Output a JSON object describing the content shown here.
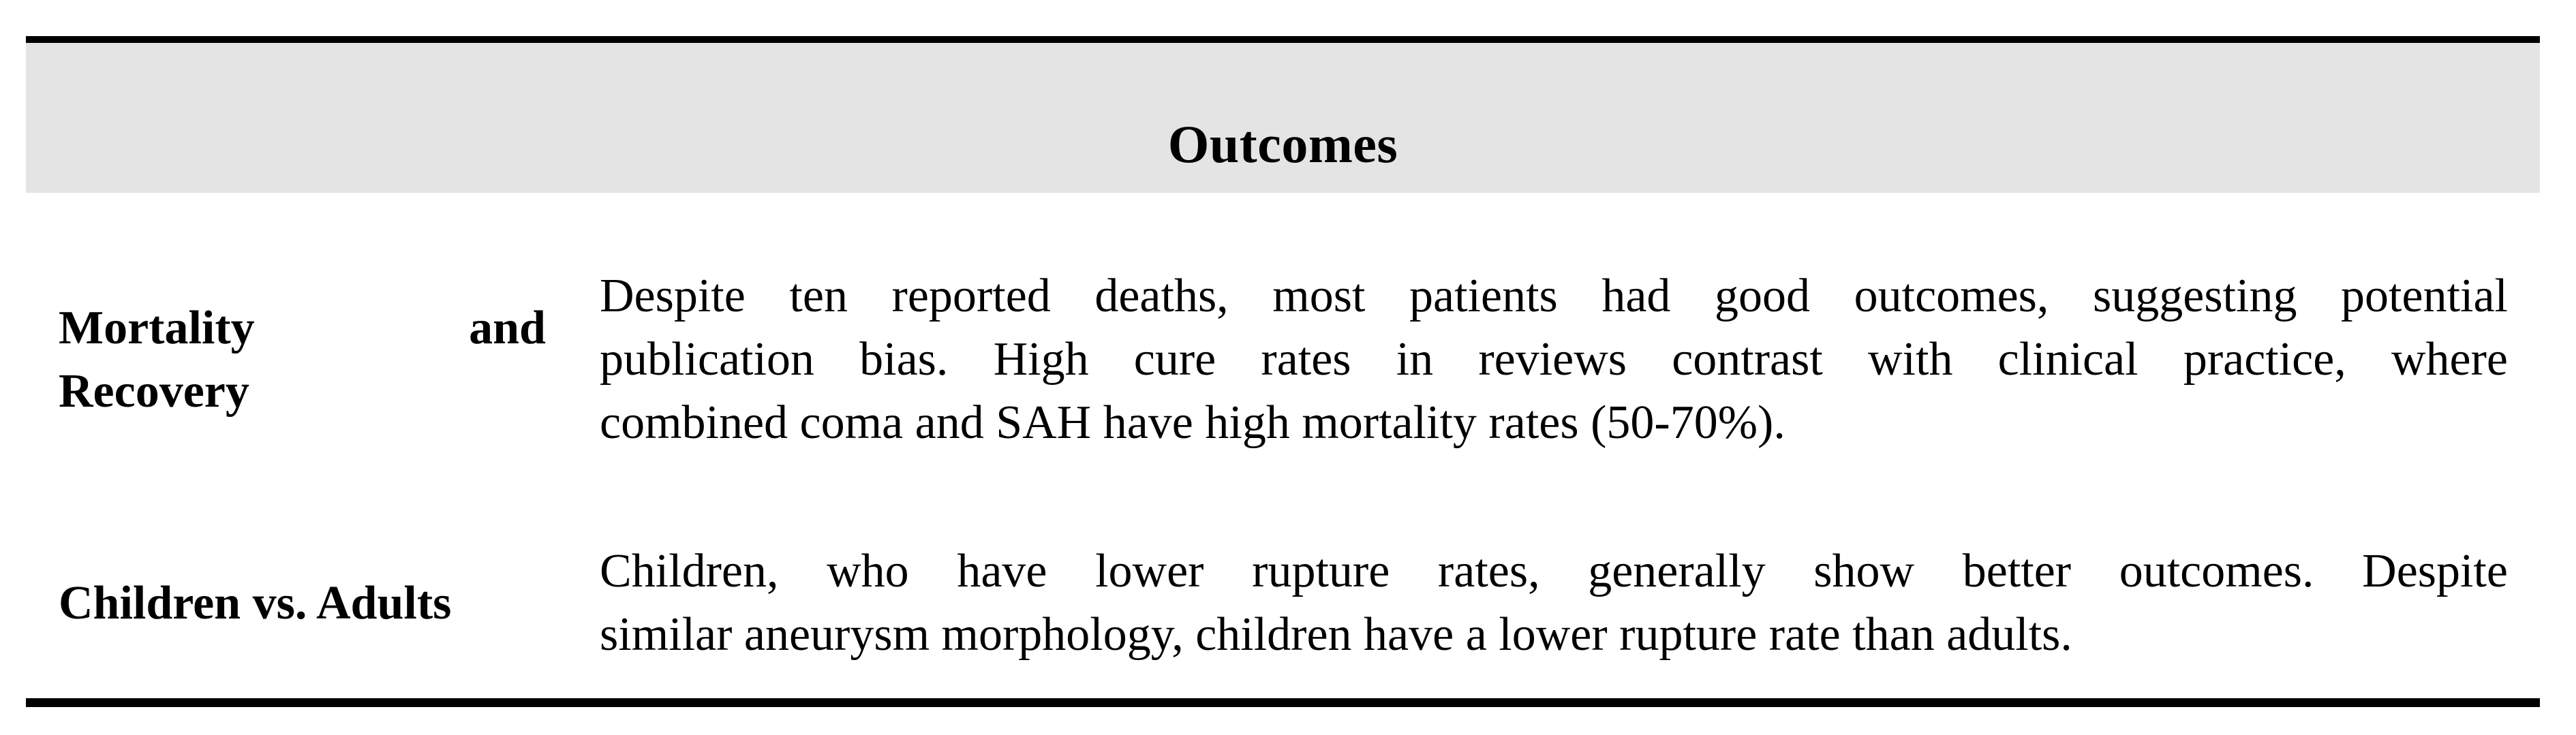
{
  "table": {
    "header": {
      "title": "Outcomes"
    },
    "rows": [
      {
        "label": "Mortality and Recovery",
        "label_lines": [
          "Mortality and",
          "Recovery"
        ],
        "body": "Despite ten reported deaths, most patients had good outcomes, suggesting potential publication bias. High cure rates in reviews contrast with clinical practice, where combined coma and SAH have high mortality rates (50-70%).",
        "body_lines": [
          "Despite ten reported deaths, most patients had good outcomes, suggesting potential",
          "publication bias. High cure rates in reviews contrast with clinical practice, where",
          "combined coma and SAH have high mortality rates (50-70%)."
        ]
      },
      {
        "label": "Children vs. Adults",
        "label_lines": [
          "Children vs. Adults"
        ],
        "body": "Children, who have lower rupture rates, generally show better outcomes. Despite similar aneurysm morphology, children have a lower rupture rate than adults.",
        "body_lines": [
          "Children, who have lower rupture rates, generally show better outcomes. Despite",
          "similar aneurysm morphology, children have a lower rupture rate than adults."
        ]
      }
    ],
    "colors": {
      "header_bg": "#e4e4e4",
      "rule": "#000000",
      "text": "#000000",
      "page_bg": "#ffffff"
    }
  }
}
